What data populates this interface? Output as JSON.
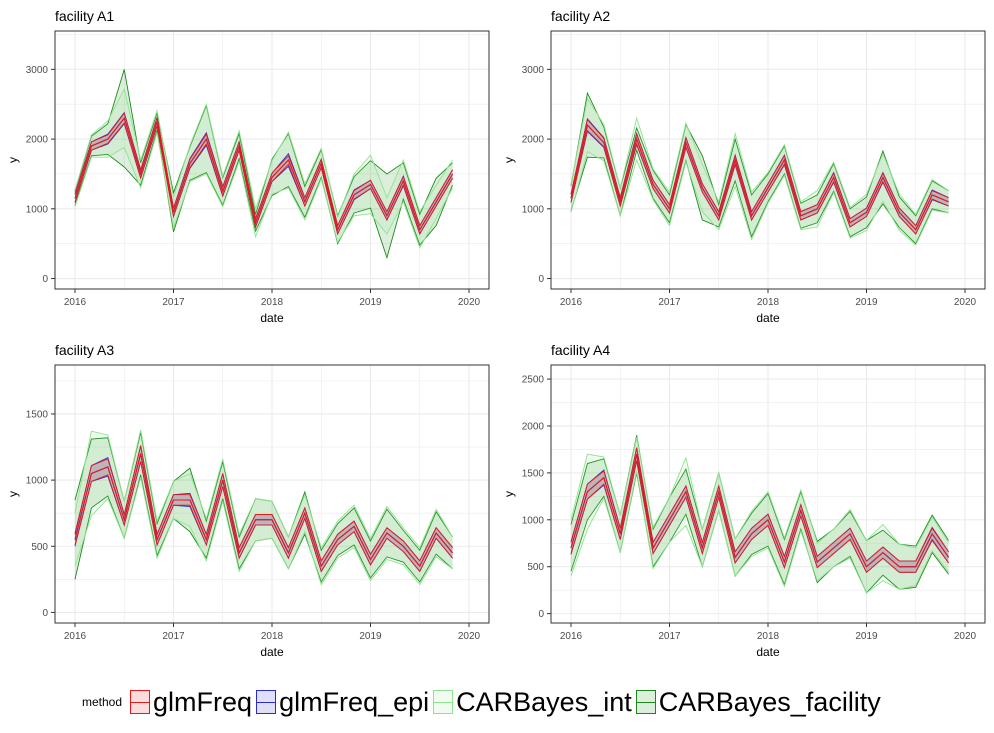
{
  "colors": {
    "glmFreq": "#e41a1c",
    "glmFreq_epi": "#2b2bd6",
    "CARBayes_int": "#8fe38f",
    "CARBayes_facility": "#1b8a1b",
    "observed": "#000000",
    "panel_background": "#ffffff",
    "grid": "#ebebeb",
    "frame": "#333333"
  },
  "legend": {
    "title": "method",
    "items": [
      {
        "key": "glmFreq",
        "label": "glmFreq"
      },
      {
        "key": "glmFreq_epi",
        "label": "glmFreq_epi"
      },
      {
        "key": "CARBayes_int",
        "label": "CARBayes_int"
      },
      {
        "key": "CARBayes_facility",
        "label": "CARBayes_facility"
      }
    ]
  },
  "chart_data": [
    {
      "type": "area",
      "title": "facility A1",
      "xlabel": "date",
      "ylabel": "y",
      "xlim": [
        "2016-01",
        "2020-01"
      ],
      "x_ticks": [
        "2016",
        "2017",
        "2018",
        "2019",
        "2020"
      ],
      "ylim": [
        -150,
        3550
      ],
      "y_ticks": [
        0,
        1000,
        2000,
        3000
      ],
      "x": [
        "2016-01",
        "2016-03",
        "2016-05",
        "2016-07",
        "2016-09",
        "2016-11",
        "2017-01",
        "2017-03",
        "2017-05",
        "2017-07",
        "2017-09",
        "2017-11",
        "2018-01",
        "2018-03",
        "2018-05",
        "2018-07",
        "2018-09",
        "2018-11",
        "2019-01",
        "2019-03",
        "2019-05",
        "2019-07",
        "2019-09",
        "2019-11"
      ],
      "series": [
        {
          "name": "glmFreq",
          "values": [
            1150,
            1900,
            2000,
            2300,
            1500,
            2250,
            950,
            1650,
            2000,
            1250,
            1900,
            800,
            1450,
            1700,
            1100,
            1650,
            700,
            1200,
            1350,
            900,
            1400,
            700,
            1100,
            1500
          ]
        },
        {
          "name": "glmFreq_epi",
          "values": [
            1150,
            1900,
            2000,
            2300,
            1500,
            2250,
            950,
            1650,
            2000,
            1250,
            1900,
            800,
            1450,
            1700,
            1100,
            1650,
            700,
            1200,
            1350,
            900,
            1400,
            700,
            1100,
            1500
          ]
        },
        {
          "name": "CARBayes_int",
          "values": [
            1150,
            1900,
            2000,
            2300,
            1500,
            2250,
            950,
            1650,
            2000,
            1250,
            1900,
            800,
            1450,
            1700,
            1100,
            1650,
            700,
            1200,
            1350,
            900,
            1400,
            700,
            1100,
            1500
          ]
        },
        {
          "name": "CARBayes_facility",
          "values": [
            1150,
            1900,
            2000,
            2300,
            1500,
            2250,
            950,
            1650,
            2000,
            1250,
            1900,
            800,
            1450,
            1700,
            1100,
            1650,
            700,
            1200,
            1350,
            900,
            1400,
            700,
            1100,
            1500
          ]
        }
      ],
      "band_halfwidth": [
        [
          60,
          60,
          60,
          70,
          60,
          60,
          60,
          60,
          70,
          60,
          60,
          60,
          60,
          60,
          60,
          60,
          60,
          60,
          60,
          60,
          60,
          60,
          60,
          60
        ],
        [
          60,
          60,
          70,
          80,
          60,
          60,
          60,
          70,
          90,
          70,
          60,
          60,
          60,
          90,
          60,
          60,
          60,
          70,
          60,
          60,
          70,
          60,
          60,
          60
        ],
        [
          120,
          160,
          260,
          420,
          200,
          160,
          220,
          260,
          500,
          220,
          220,
          200,
          240,
          400,
          260,
          220,
          180,
          300,
          420,
          260,
          300,
          260,
          240,
          200
        ],
        [
          100,
          140,
          220,
          700,
          160,
          120,
          280,
          240,
          480,
          200,
          180,
          120,
          260,
          380,
          220,
          200,
          200,
          260,
          340,
          600,
          260,
          220,
          340,
          160
        ]
      ]
    },
    {
      "type": "area",
      "title": "facility A2",
      "xlabel": "date",
      "ylabel": "y",
      "xlim": [
        "2016-01",
        "2020-01"
      ],
      "x_ticks": [
        "2016",
        "2017",
        "2018",
        "2019",
        "2020"
      ],
      "ylim": [
        -150,
        3550
      ],
      "y_ticks": [
        0,
        1000,
        2000,
        3000
      ],
      "x": [
        "2016-01",
        "2016-03",
        "2016-05",
        "2016-07",
        "2016-09",
        "2016-11",
        "2017-01",
        "2017-03",
        "2017-05",
        "2017-07",
        "2017-09",
        "2017-11",
        "2018-01",
        "2018-03",
        "2018-05",
        "2018-07",
        "2018-09",
        "2018-11",
        "2019-01",
        "2019-03",
        "2019-05",
        "2019-07",
        "2019-09",
        "2019-11"
      ],
      "series": [
        {
          "name": "glmFreq",
          "values": [
            1150,
            2200,
            1950,
            1100,
            2000,
            1350,
            1000,
            1950,
            1300,
            900,
            1700,
            900,
            1300,
            1700,
            900,
            1000,
            1450,
            800,
            950,
            1450,
            950,
            700,
            1200,
            1100
          ]
        },
        {
          "name": "glmFreq_epi",
          "values": [
            1150,
            2200,
            1950,
            1100,
            2000,
            1350,
            1000,
            1950,
            1300,
            900,
            1700,
            900,
            1300,
            1700,
            900,
            1000,
            1450,
            800,
            950,
            1450,
            950,
            700,
            1200,
            1100
          ]
        },
        {
          "name": "CARBayes_int",
          "values": [
            1150,
            2200,
            1950,
            1100,
            2000,
            1350,
            1000,
            1950,
            1300,
            900,
            1700,
            900,
            1300,
            1700,
            900,
            1000,
            1450,
            800,
            950,
            1450,
            950,
            700,
            1200,
            1100
          ]
        },
        {
          "name": "CARBayes_facility",
          "values": [
            1150,
            2200,
            1950,
            1100,
            2000,
            1350,
            1000,
            1950,
            1300,
            900,
            1700,
            900,
            1300,
            1700,
            900,
            1000,
            1450,
            800,
            950,
            1450,
            950,
            700,
            1200,
            1100
          ]
        }
      ],
      "band_halfwidth": [
        [
          60,
          80,
          60,
          60,
          70,
          60,
          60,
          70,
          60,
          60,
          60,
          60,
          60,
          60,
          60,
          60,
          60,
          60,
          60,
          60,
          60,
          60,
          60,
          60
        ],
        [
          60,
          90,
          70,
          60,
          80,
          60,
          60,
          70,
          60,
          60,
          70,
          60,
          60,
          70,
          60,
          60,
          70,
          60,
          60,
          70,
          60,
          60,
          70,
          60
        ],
        [
          200,
          380,
          260,
          200,
          300,
          220,
          240,
          280,
          340,
          200,
          380,
          340,
          220,
          220,
          200,
          260,
          220,
          220,
          260,
          340,
          260,
          220,
          220,
          160
        ],
        [
          180,
          460,
          220,
          200,
          160,
          200,
          200,
          260,
          460,
          160,
          300,
          300,
          200,
          200,
          180,
          200,
          200,
          200,
          220,
          380,
          220,
          200,
          200,
          160
        ]
      ]
    },
    {
      "type": "area",
      "title": "facility A3",
      "xlabel": "date",
      "ylabel": "y",
      "xlim": [
        "2016-01",
        "2020-01"
      ],
      "x_ticks": [
        "2016",
        "2017",
        "2018",
        "2019",
        "2020"
      ],
      "ylim": [
        -80,
        1870
      ],
      "y_ticks": [
        0,
        500,
        1000,
        1500
      ],
      "x": [
        "2016-01",
        "2016-03",
        "2016-05",
        "2016-07",
        "2016-09",
        "2016-11",
        "2017-01",
        "2017-03",
        "2017-05",
        "2017-07",
        "2017-09",
        "2017-11",
        "2018-01",
        "2018-03",
        "2018-05",
        "2018-07",
        "2018-09",
        "2018-11",
        "2019-01",
        "2019-03",
        "2019-05",
        "2019-07",
        "2019-09",
        "2019-11"
      ],
      "series": [
        {
          "name": "glmFreq",
          "values": [
            550,
            1050,
            1100,
            700,
            1200,
            550,
            850,
            850,
            550,
            1000,
            450,
            700,
            700,
            450,
            750,
            350,
            550,
            650,
            400,
            600,
            500,
            350,
            600,
            450
          ]
        },
        {
          "name": "glmFreq_epi",
          "values": [
            550,
            1050,
            1100,
            700,
            1200,
            550,
            850,
            850,
            550,
            1000,
            450,
            700,
            700,
            450,
            750,
            350,
            550,
            650,
            400,
            600,
            500,
            350,
            600,
            450
          ]
        },
        {
          "name": "CARBayes_int",
          "values": [
            550,
            1050,
            1100,
            700,
            1200,
            550,
            850,
            850,
            550,
            1000,
            450,
            700,
            700,
            450,
            750,
            350,
            550,
            650,
            400,
            600,
            500,
            350,
            600,
            450
          ]
        },
        {
          "name": "CARBayes_facility",
          "values": [
            550,
            1050,
            1100,
            700,
            1200,
            550,
            850,
            850,
            550,
            1000,
            450,
            700,
            700,
            450,
            750,
            350,
            550,
            650,
            400,
            600,
            500,
            350,
            600,
            450
          ]
        }
      ],
      "band_halfwidth": [
        [
          50,
          60,
          60,
          40,
          60,
          40,
          40,
          40,
          40,
          50,
          40,
          40,
          40,
          40,
          40,
          40,
          40,
          40,
          40,
          40,
          40,
          40,
          40,
          40
        ],
        [
          40,
          60,
          70,
          40,
          60,
          40,
          40,
          50,
          40,
          50,
          40,
          40,
          40,
          40,
          40,
          40,
          40,
          40,
          40,
          40,
          40,
          40,
          40,
          40
        ],
        [
          200,
          320,
          240,
          140,
          180,
          140,
          140,
          200,
          160,
          160,
          140,
          160,
          140,
          120,
          140,
          140,
          140,
          160,
          160,
          200,
          140,
          140,
          180,
          120
        ],
        [
          300,
          260,
          220,
          140,
          160,
          120,
          140,
          240,
          140,
          140,
          120,
          160,
          140,
          120,
          160,
          120,
          120,
          140,
          140,
          180,
          120,
          120,
          160,
          120
        ]
      ]
    },
    {
      "type": "area",
      "title": "facility A4",
      "xlabel": "date",
      "ylabel": "y",
      "xlim": [
        "2016-01",
        "2020-01"
      ],
      "x_ticks": [
        "2016",
        "2017",
        "2018",
        "2019",
        "2020"
      ],
      "ylim": [
        -100,
        2650
      ],
      "y_ticks": [
        0,
        500,
        1000,
        1500,
        2000,
        2500
      ],
      "x": [
        "2016-01",
        "2016-03",
        "2016-05",
        "2016-07",
        "2016-09",
        "2016-11",
        "2017-01",
        "2017-03",
        "2017-05",
        "2017-07",
        "2017-09",
        "2017-11",
        "2018-01",
        "2018-03",
        "2018-05",
        "2018-07",
        "2018-09",
        "2018-11",
        "2019-01",
        "2019-03",
        "2019-05",
        "2019-07",
        "2019-09",
        "2019-11"
      ],
      "series": [
        {
          "name": "glmFreq",
          "values": [
            700,
            1300,
            1450,
            850,
            1700,
            700,
            1000,
            1300,
            700,
            1300,
            600,
            850,
            1000,
            550,
            1100,
            550,
            700,
            850,
            500,
            650,
            500,
            500,
            850,
            600
          ]
        },
        {
          "name": "glmFreq_epi",
          "values": [
            700,
            1300,
            1450,
            850,
            1700,
            700,
            1000,
            1300,
            700,
            1300,
            600,
            850,
            1000,
            550,
            1100,
            550,
            700,
            850,
            500,
            650,
            500,
            500,
            850,
            600
          ]
        },
        {
          "name": "CARBayes_int",
          "values": [
            700,
            1300,
            1450,
            850,
            1700,
            700,
            1000,
            1300,
            700,
            1300,
            600,
            850,
            1000,
            550,
            1100,
            550,
            700,
            850,
            500,
            650,
            500,
            500,
            850,
            600
          ]
        },
        {
          "name": "CARBayes_facility",
          "values": [
            700,
            1300,
            1450,
            850,
            1700,
            700,
            1000,
            1300,
            700,
            1300,
            600,
            850,
            1000,
            550,
            1100,
            550,
            700,
            850,
            500,
            650,
            500,
            500,
            850,
            600
          ]
        }
      ],
      "band_halfwidth": [
        [
          70,
          80,
          70,
          60,
          70,
          60,
          60,
          60,
          60,
          60,
          60,
          60,
          60,
          60,
          60,
          60,
          60,
          60,
          60,
          60,
          60,
          60,
          70,
          60
        ],
        [
          60,
          80,
          80,
          60,
          70,
          60,
          60,
          60,
          60,
          60,
          60,
          60,
          60,
          60,
          60,
          60,
          60,
          60,
          60,
          60,
          60,
          60,
          60,
          60
        ],
        [
          300,
          400,
          220,
          200,
          180,
          220,
          240,
          360,
          200,
          200,
          200,
          240,
          300,
          260,
          220,
          200,
          200,
          260,
          280,
          300,
          240,
          200,
          180,
          160
        ],
        [
          250,
          300,
          200,
          200,
          200,
          200,
          240,
          240,
          200,
          200,
          200,
          220,
          280,
          240,
          200,
          220,
          200,
          240,
          280,
          240,
          240,
          220,
          200,
          180
        ]
      ]
    }
  ]
}
